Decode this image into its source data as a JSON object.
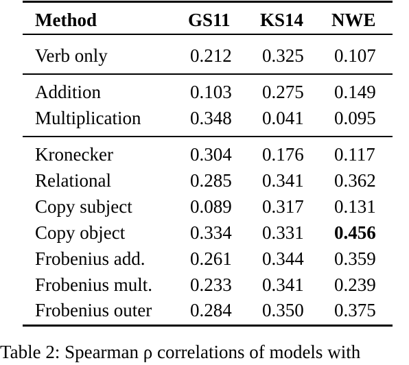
{
  "table": {
    "headers": [
      "Method",
      "GS11",
      "KS14",
      "NWE"
    ],
    "groups": [
      {
        "rows": [
          {
            "method": "Verb only",
            "gs11": "0.212",
            "ks14": "0.325",
            "nwe": "0.107"
          }
        ]
      },
      {
        "rows": [
          {
            "method": "Addition",
            "gs11": "0.103",
            "ks14": "0.275",
            "nwe": "0.149"
          },
          {
            "method": "Multiplication",
            "gs11": "0.348",
            "ks14": "0.041",
            "nwe": "0.095"
          }
        ]
      },
      {
        "rows": [
          {
            "method": "Kronecker",
            "gs11": "0.304",
            "ks14": "0.176",
            "nwe": "0.117"
          },
          {
            "method": "Relational",
            "gs11": "0.285",
            "ks14": "0.341",
            "nwe": "0.362"
          },
          {
            "method": "Copy subject",
            "gs11": "0.089",
            "ks14": "0.317",
            "nwe": "0.131"
          },
          {
            "method": "Copy object",
            "gs11": "0.334",
            "ks14": "0.331",
            "nwe": "0.456"
          },
          {
            "method": "Frobenius add.",
            "gs11": "0.261",
            "ks14": "0.344",
            "nwe": "0.359"
          },
          {
            "method": "Frobenius mult.",
            "gs11": "0.233",
            "ks14": "0.341",
            "nwe": "0.239"
          },
          {
            "method": "Frobenius outer",
            "gs11": "0.284",
            "ks14": "0.350",
            "nwe": "0.375"
          }
        ]
      }
    ],
    "bold_cell": {
      "row": "Copy object",
      "column": "NWE"
    }
  },
  "caption": "Table 2: Spearman ρ correlations of models with"
}
